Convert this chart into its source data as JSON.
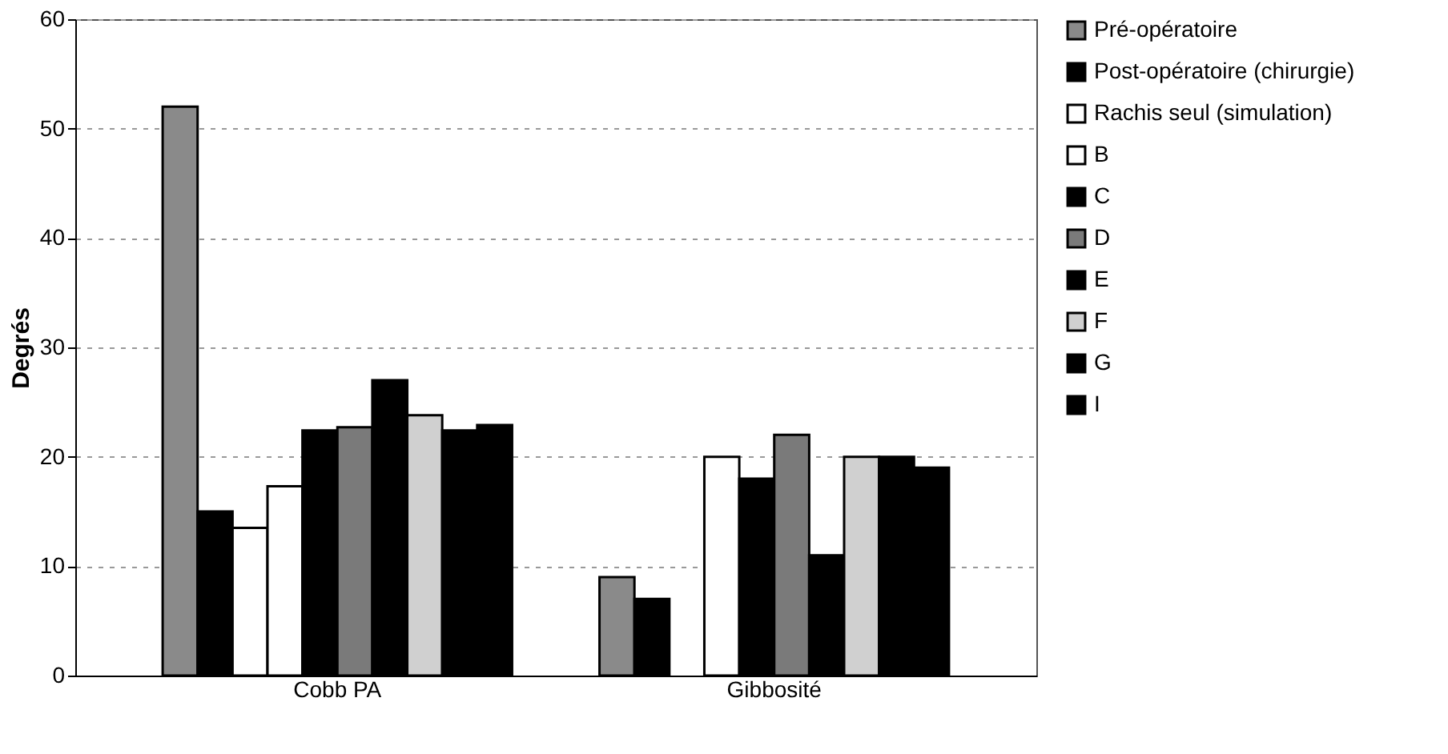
{
  "chart_data": {
    "type": "bar",
    "ylabel": "Degrés",
    "categories": [
      "Cobb PA",
      "Gibbosité"
    ],
    "series": [
      {
        "name": "Pré-opératoire",
        "color": "#8a8a8a",
        "values": [
          52,
          9
        ]
      },
      {
        "name": "Post-opératoire (chirurgie)",
        "color": "#000000",
        "values": [
          15,
          7
        ]
      },
      {
        "name": "Rachis seul (simulation)",
        "color": "#ffffff",
        "values": [
          13.5,
          null
        ]
      },
      {
        "name": "B",
        "color": "#ffffff",
        "values": [
          17.3,
          20
        ]
      },
      {
        "name": "C",
        "color": "#000000",
        "values": [
          22.4,
          18
        ]
      },
      {
        "name": "D",
        "color": "#7a7a7a",
        "values": [
          22.7,
          22
        ]
      },
      {
        "name": "E",
        "color": "#000000",
        "values": [
          27,
          11
        ]
      },
      {
        "name": "F",
        "color": "#d0d0d0",
        "values": [
          23.8,
          20
        ]
      },
      {
        "name": "G",
        "color": "#000000",
        "values": [
          22.4,
          20
        ]
      },
      {
        "name": "I",
        "color": "#000000",
        "values": [
          22.9,
          19
        ]
      }
    ],
    "ylim": [
      0,
      60
    ],
    "yticks": [
      0,
      10,
      20,
      30,
      40,
      50,
      60
    ],
    "grid": "y",
    "legend": "right"
  }
}
